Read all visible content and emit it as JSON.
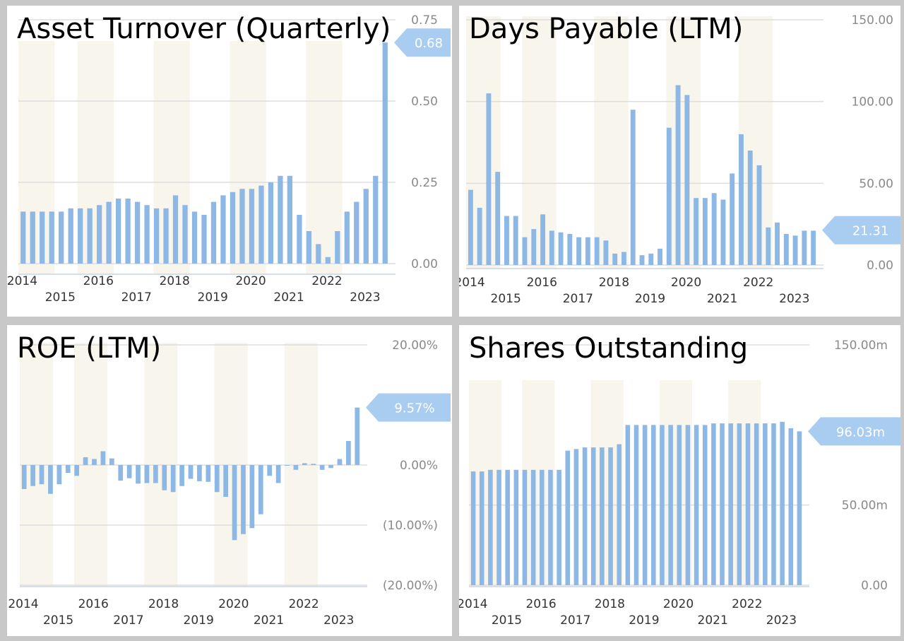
{
  "colors": {
    "bar": "#8db8e6",
    "band": "#f8f5ec",
    "grid": "#dddddd",
    "callout_fill": "#a9cdf0",
    "callout_text": "#ffffff"
  },
  "chart_data": [
    {
      "type": "bar",
      "title": "Asset Turnover (Quarterly)",
      "ylim": [
        0,
        0.75
      ],
      "yticks": [
        "0.75",
        "0.50",
        "0.25",
        "0.00"
      ],
      "ytick_values": [
        0.75,
        0.5,
        0.25,
        0
      ],
      "years_upper": [
        "2014",
        "2016",
        "2018",
        "2020",
        "2022"
      ],
      "years_lower": [
        "2015",
        "2017",
        "2019",
        "2021",
        "2023"
      ],
      "callout": "0.68",
      "callout_value": 0.68,
      "grid": true,
      "values": [
        0.16,
        0.16,
        0.16,
        0.16,
        0.16,
        0.17,
        0.17,
        0.17,
        0.18,
        0.19,
        0.2,
        0.2,
        0.19,
        0.18,
        0.17,
        0.17,
        0.21,
        0.18,
        0.16,
        0.15,
        0.19,
        0.21,
        0.22,
        0.23,
        0.23,
        0.24,
        0.25,
        0.27,
        0.27,
        0.15,
        0.1,
        0.06,
        0.02,
        0.1,
        0.16,
        0.19,
        0.23,
        0.27,
        0.68
      ]
    },
    {
      "type": "bar",
      "title": "Days Payable (LTM)",
      "ylim": [
        0,
        150
      ],
      "yticks": [
        "150.00",
        "100.00",
        "50.00",
        "0.00"
      ],
      "ytick_values": [
        150,
        100,
        50,
        0
      ],
      "years_upper": [
        "2014",
        "2016",
        "2018",
        "2020",
        "2022"
      ],
      "years_lower": [
        "2015",
        "2017",
        "2019",
        "2021",
        "2023"
      ],
      "callout": "21.31",
      "callout_value": 21.31,
      "grid": true,
      "values": [
        46,
        35,
        105,
        57,
        30,
        30,
        17,
        22,
        31,
        21,
        20,
        19,
        17,
        17,
        17,
        15,
        7,
        8,
        95,
        6,
        7,
        10,
        84,
        110,
        104,
        41,
        41,
        44,
        40,
        56,
        80,
        70,
        61,
        23,
        26,
        19,
        18,
        21,
        21
      ]
    },
    {
      "type": "bar",
      "title": "ROE (LTM)",
      "ylim": [
        -20,
        20
      ],
      "yticks": [
        "20.00%",
        "0.00%",
        "(10.00%)",
        "(20.00%)"
      ],
      "ytick_values": [
        20,
        0,
        -10,
        -20
      ],
      "years_upper": [
        "2014",
        "2016",
        "2018",
        "2020",
        "2022"
      ],
      "years_lower": [
        "2015",
        "2017",
        "2019",
        "2021",
        "2023"
      ],
      "callout": "9.57%",
      "callout_value": 9.57,
      "grid": true,
      "values": [
        -4,
        -3.5,
        -3.2,
        -4.8,
        -3.2,
        -1.3,
        -1.8,
        1.3,
        1,
        2.3,
        1.1,
        -2.6,
        -2.2,
        -3.1,
        -3,
        -3,
        -4.2,
        -4.5,
        -3.5,
        -2.3,
        -2.7,
        -2.8,
        -4.5,
        -5.3,
        -12.5,
        -11.5,
        -10.5,
        -8.2,
        -1.8,
        -3,
        0,
        -0.8,
        0.3,
        0.2,
        -0.8,
        -0.5,
        1,
        4,
        9.57
      ]
    },
    {
      "type": "bar",
      "title": "Shares Outstanding",
      "ylim": [
        0,
        150
      ],
      "yticks": [
        "150.00m",
        "50.00m",
        "0.00"
      ],
      "ytick_values": [
        150,
        50,
        0
      ],
      "years_upper": [
        "2014",
        "2016",
        "2018",
        "2020",
        "2022"
      ],
      "years_lower": [
        "2015",
        "2017",
        "2019",
        "2021",
        "2023"
      ],
      "callout": "96.03m",
      "callout_value": 96.03,
      "grid": true,
      "values": [
        71,
        71,
        72,
        72,
        72,
        72,
        72,
        72,
        72,
        72,
        72,
        84,
        85,
        86,
        86,
        86,
        86,
        88,
        100,
        100,
        100,
        100,
        100,
        100,
        100,
        100,
        100,
        100,
        101,
        101,
        101,
        101,
        101,
        101,
        101,
        101,
        102,
        98,
        96.03
      ]
    }
  ]
}
